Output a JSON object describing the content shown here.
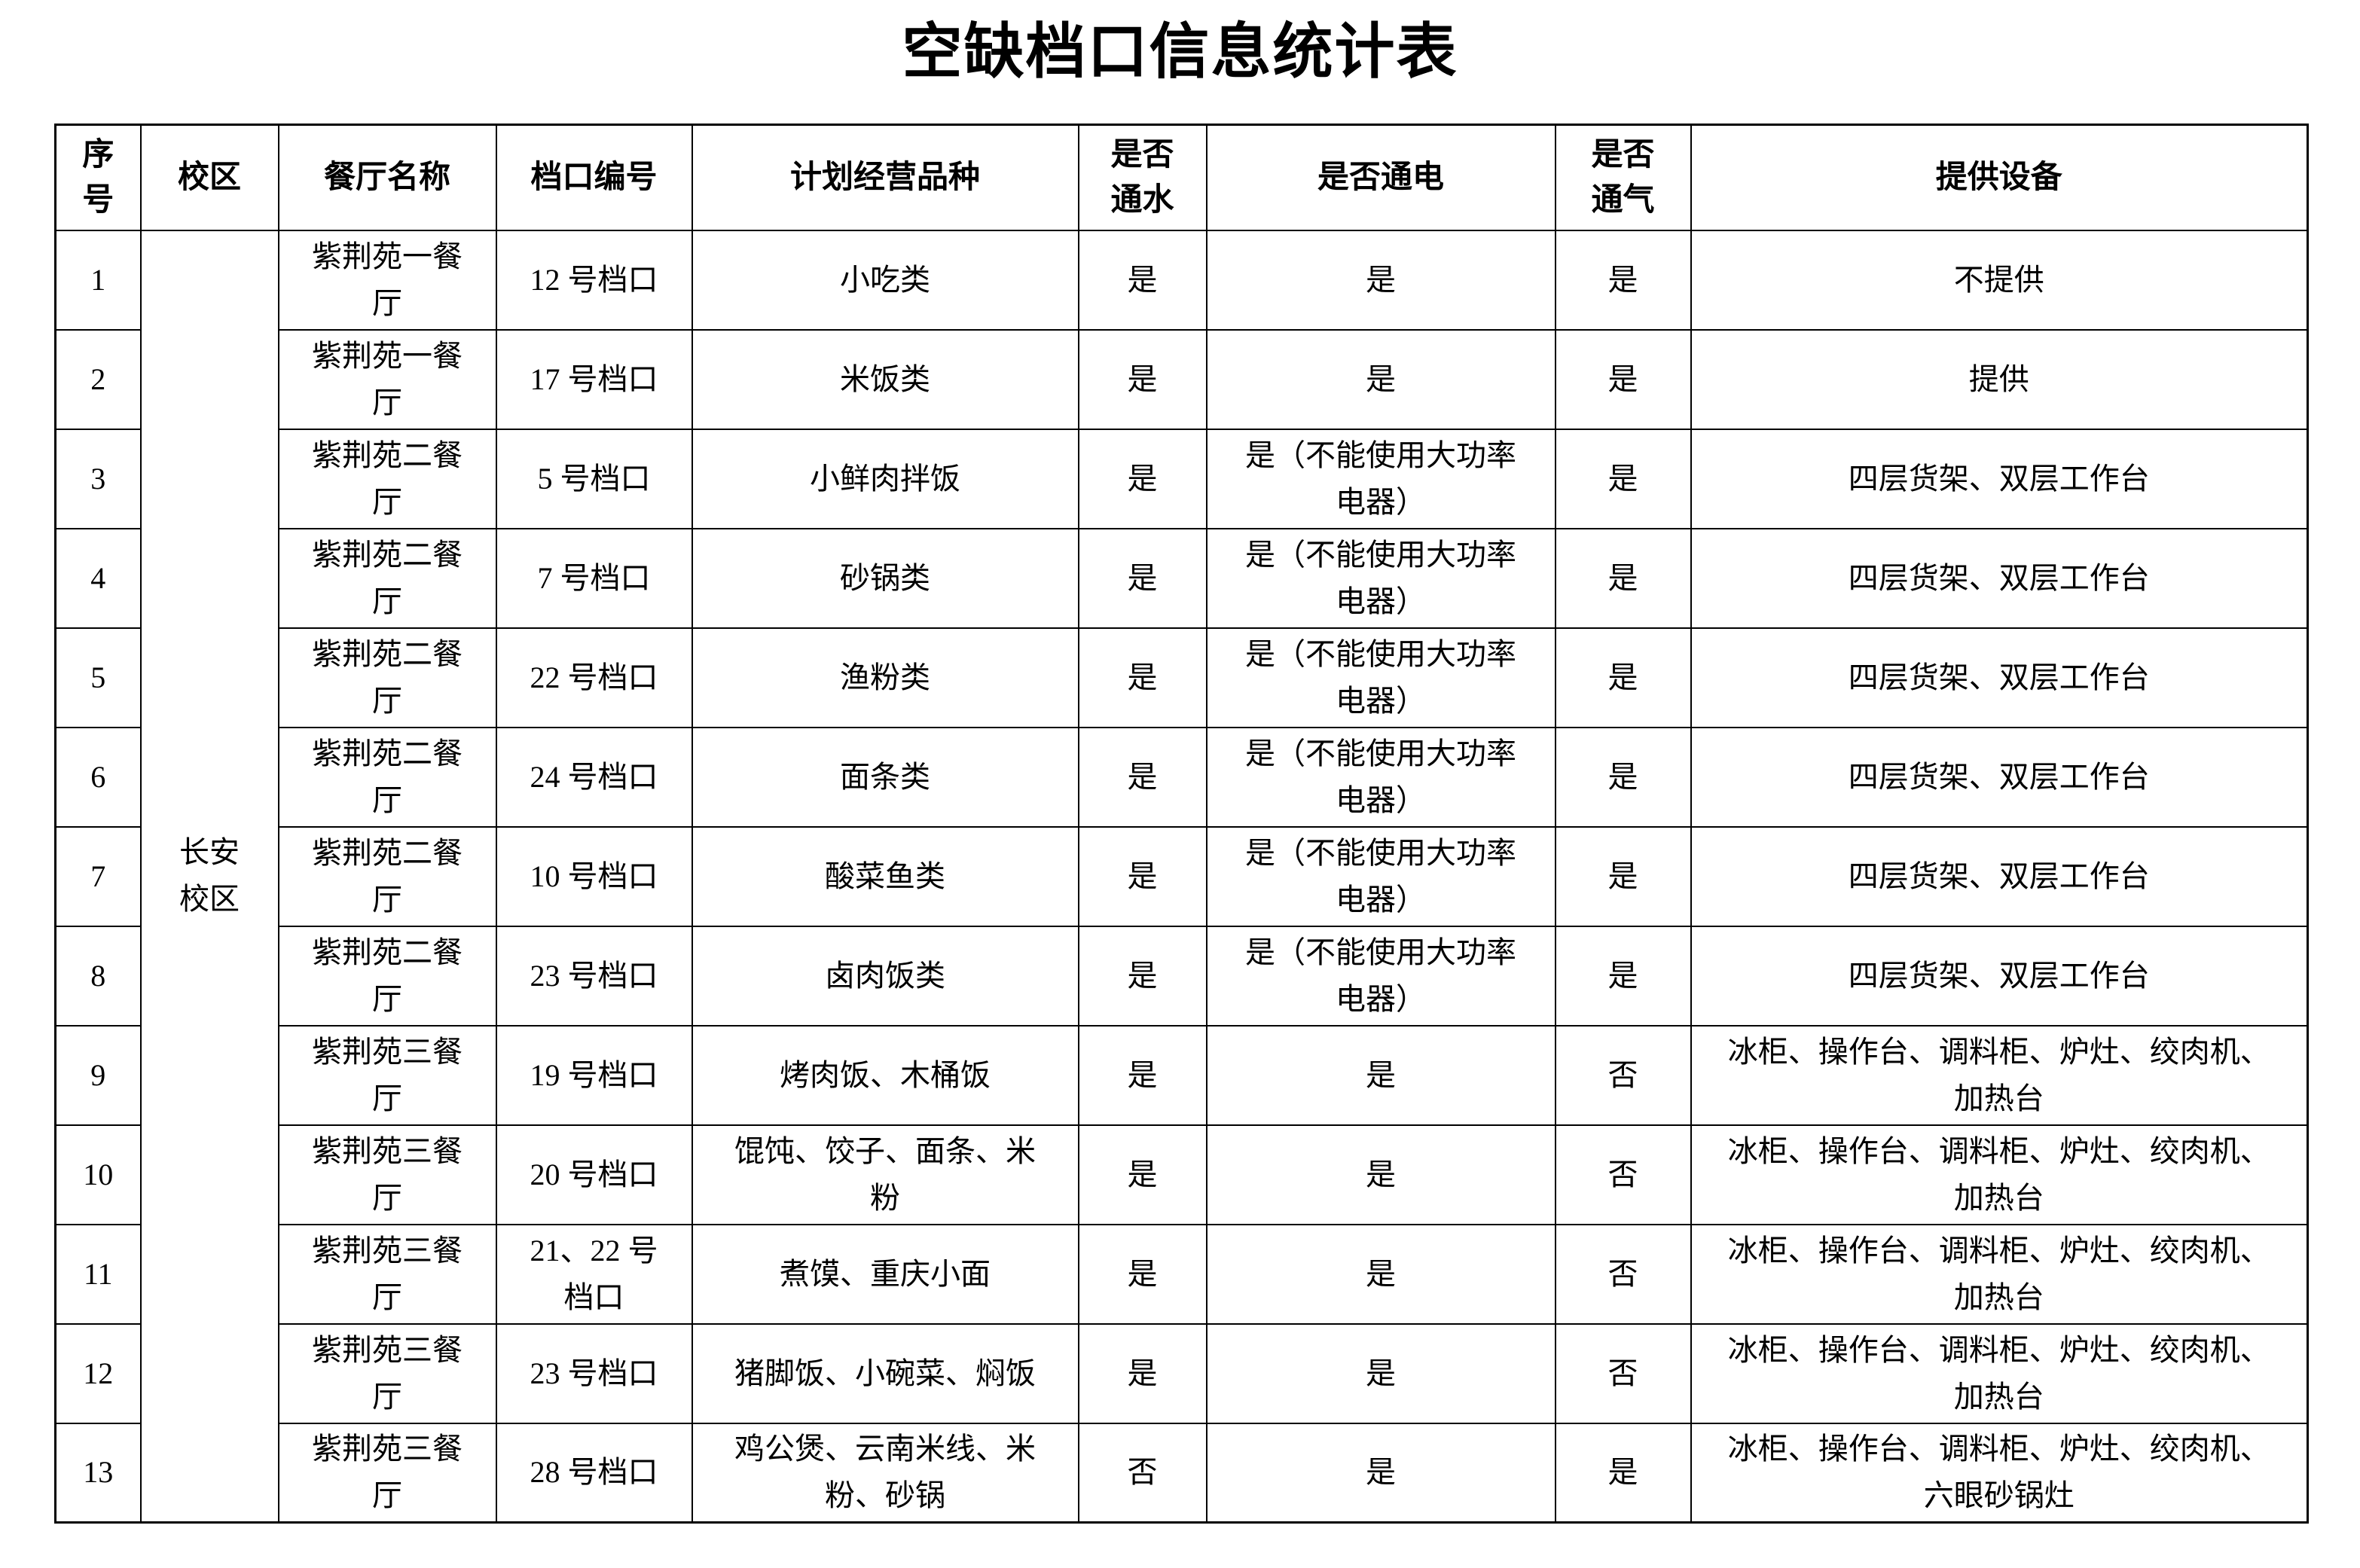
{
  "title": "空缺档口信息统计表",
  "table": {
    "headers": {
      "index": "序\n号",
      "campus": "校区",
      "restaurant": "餐厅名称",
      "stall": "档口编号",
      "category": "计划经营品种",
      "water": "是否\n通水",
      "electric": "是否通电",
      "gas": "是否\n通气",
      "equipment": "提供设备"
    },
    "campus_merged": "长安\n校区",
    "rows": [
      {
        "index": "1",
        "restaurant": "紫荆苑一餐\n厅",
        "stall": "12 号档口",
        "category": "小吃类",
        "water": "是",
        "electric": "是",
        "gas": "是",
        "equipment": "不提供"
      },
      {
        "index": "2",
        "restaurant": "紫荆苑一餐\n厅",
        "stall": "17 号档口",
        "category": "米饭类",
        "water": "是",
        "electric": "是",
        "gas": "是",
        "equipment": "提供"
      },
      {
        "index": "3",
        "restaurant": "紫荆苑二餐\n厅",
        "stall": "5 号档口",
        "category": "小鲜肉拌饭",
        "water": "是",
        "electric": "是（不能使用大功率\n电器）",
        "gas": "是",
        "equipment": "四层货架、双层工作台"
      },
      {
        "index": "4",
        "restaurant": "紫荆苑二餐\n厅",
        "stall": "7 号档口",
        "category": "砂锅类",
        "water": "是",
        "electric": "是（不能使用大功率\n电器）",
        "gas": "是",
        "equipment": "四层货架、双层工作台"
      },
      {
        "index": "5",
        "restaurant": "紫荆苑二餐\n厅",
        "stall": "22 号档口",
        "category": "渔粉类",
        "water": "是",
        "electric": "是（不能使用大功率\n电器）",
        "gas": "是",
        "equipment": "四层货架、双层工作台"
      },
      {
        "index": "6",
        "restaurant": "紫荆苑二餐\n厅",
        "stall": "24 号档口",
        "category": "面条类",
        "water": "是",
        "electric": "是（不能使用大功率\n电器）",
        "gas": "是",
        "equipment": "四层货架、双层工作台"
      },
      {
        "index": "7",
        "restaurant": "紫荆苑二餐\n厅",
        "stall": "10 号档口",
        "category": "酸菜鱼类",
        "water": "是",
        "electric": "是（不能使用大功率\n电器）",
        "gas": "是",
        "equipment": "四层货架、双层工作台"
      },
      {
        "index": "8",
        "restaurant": "紫荆苑二餐\n厅",
        "stall": "23 号档口",
        "category": "卤肉饭类",
        "water": "是",
        "electric": "是（不能使用大功率\n电器）",
        "gas": "是",
        "equipment": "四层货架、双层工作台"
      },
      {
        "index": "9",
        "restaurant": "紫荆苑三餐\n厅",
        "stall": "19 号档口",
        "category": "烤肉饭、木桶饭",
        "water": "是",
        "electric": "是",
        "gas": "否",
        "equipment": "冰柜、操作台、调料柜、炉灶、绞肉机、\n加热台"
      },
      {
        "index": "10",
        "restaurant": "紫荆苑三餐\n厅",
        "stall": "20 号档口",
        "category": "馄饨、饺子、面条、米\n粉",
        "water": "是",
        "electric": "是",
        "gas": "否",
        "equipment": "冰柜、操作台、调料柜、炉灶、绞肉机、\n加热台"
      },
      {
        "index": "11",
        "restaurant": "紫荆苑三餐\n厅",
        "stall": "21、22 号\n档口",
        "category": "煮馍、重庆小面",
        "water": "是",
        "electric": "是",
        "gas": "否",
        "equipment": "冰柜、操作台、调料柜、炉灶、绞肉机、\n加热台"
      },
      {
        "index": "12",
        "restaurant": "紫荆苑三餐\n厅",
        "stall": "23 号档口",
        "category": "猪脚饭、小碗菜、焖饭",
        "water": "是",
        "electric": "是",
        "gas": "否",
        "equipment": "冰柜、操作台、调料柜、炉灶、绞肉机、\n加热台"
      },
      {
        "index": "13",
        "restaurant": "紫荆苑三餐\n厅",
        "stall": "28 号档口",
        "category": "鸡公煲、云南米线、米\n粉、砂锅",
        "water": "否",
        "electric": "是",
        "gas": "是",
        "equipment": "冰柜、操作台、调料柜、炉灶、绞肉机、\n六眼砂锅灶"
      }
    ]
  }
}
